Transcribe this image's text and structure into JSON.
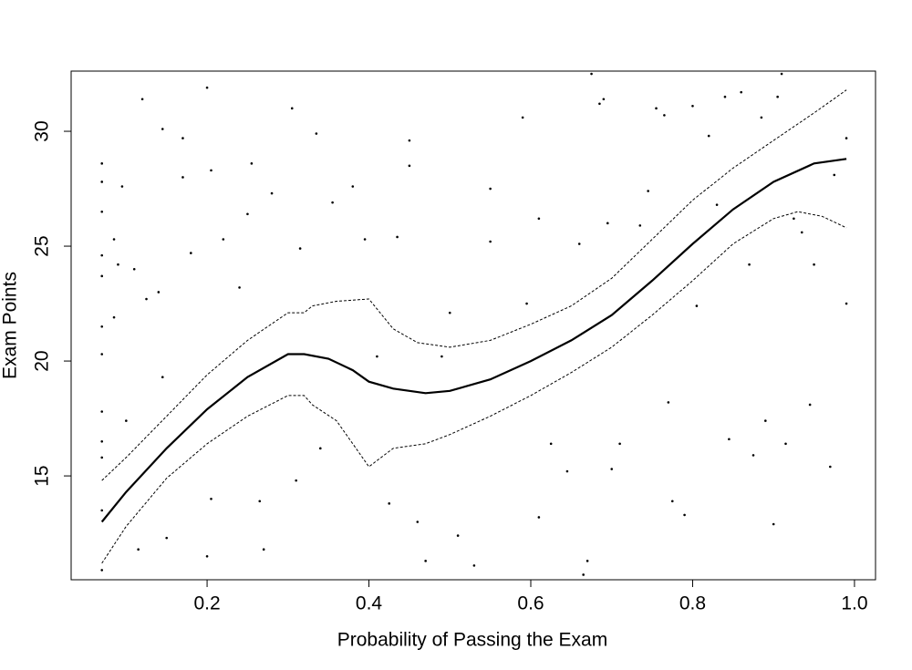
{
  "chart_data": {
    "type": "scatter",
    "xlabel": "Probability of Passing the Exam",
    "ylabel": "Exam Points",
    "color": "#000000",
    "xlim": [
      0.032,
      1.026
    ],
    "ylim": [
      10.48,
      32.62
    ],
    "xticks": [
      0.2,
      0.4,
      0.6,
      0.8,
      {
        "value": 1,
        "label": "1.0"
      }
    ],
    "yticks": [
      15,
      20,
      25,
      30
    ],
    "x": [
      0.07,
      0.07,
      0.07,
      0.07,
      0.07,
      0.07,
      0.07,
      0.07,
      0.07,
      0.07,
      0.07,
      0.07,
      0.085,
      0.085,
      0.09,
      0.095,
      0.1,
      0.11,
      0.115,
      0.12,
      0.125,
      0.14,
      0.145,
      0.145,
      0.15,
      0.17,
      0.17,
      0.18,
      0.2,
      0.205,
      0.2,
      0.205,
      0.22,
      0.24,
      0.25,
      0.255,
      0.265,
      0.27,
      0.28,
      0.305,
      0.31,
      0.315,
      0.335,
      0.34,
      0.355,
      0.38,
      0.395,
      0.41,
      0.425,
      0.435,
      0.45,
      0.45,
      0.46,
      0.47,
      0.49,
      0.5,
      0.51,
      0.53,
      0.55,
      0.55,
      0.59,
      0.595,
      0.61,
      0.61,
      0.625,
      0.645,
      0.66,
      0.665,
      0.67,
      0.675,
      0.685,
      0.69,
      0.695,
      0.7,
      0.71,
      0.735,
      0.745,
      0.755,
      0.765,
      0.77,
      0.775,
      0.79,
      0.8,
      0.805,
      0.82,
      0.83,
      0.84,
      0.845,
      0.86,
      0.87,
      0.875,
      0.885,
      0.89,
      0.9,
      0.905,
      0.91,
      0.915,
      0.925,
      0.935,
      0.945,
      0.95,
      0.97,
      0.975,
      0.99,
      0.99
    ],
    "values": [
      28.6,
      27.8,
      26.5,
      24.6,
      23.7,
      21.5,
      20.3,
      17.8,
      16.5,
      15.8,
      13.5,
      10.9,
      25.3,
      21.9,
      24.2,
      27.6,
      17.4,
      24.0,
      11.8,
      31.4,
      22.7,
      23.0,
      30.1,
      19.3,
      12.3,
      29.7,
      28.0,
      24.7,
      31.9,
      28.3,
      11.5,
      14.0,
      25.3,
      23.2,
      26.4,
      28.6,
      13.9,
      11.8,
      27.3,
      31.0,
      14.8,
      24.9,
      29.9,
      16.2,
      26.9,
      27.6,
      25.3,
      20.2,
      13.8,
      25.4,
      29.6,
      28.5,
      13.0,
      11.3,
      20.2,
      22.1,
      12.4,
      11.1,
      27.5,
      25.2,
      30.6,
      22.5,
      26.2,
      13.2,
      16.4,
      15.2,
      25.1,
      10.7,
      11.3,
      32.5,
      31.2,
      31.4,
      26.0,
      15.3,
      16.4,
      25.9,
      27.4,
      31.0,
      30.7,
      18.2,
      13.9,
      13.3,
      31.1,
      22.4,
      29.8,
      26.8,
      31.5,
      16.6,
      31.7,
      24.2,
      15.9,
      30.6,
      17.4,
      12.9,
      31.5,
      32.5,
      16.4,
      26.2,
      25.6,
      18.1,
      24.2,
      15.4,
      28.1,
      29.7,
      22.5
    ],
    "lines": [
      {
        "dashed": false,
        "x": [
          0.07,
          0.1,
          0.15,
          0.2,
          0.25,
          0.3,
          0.32,
          0.35,
          0.38,
          0.4,
          0.43,
          0.47,
          0.5,
          0.55,
          0.6,
          0.65,
          0.7,
          0.75,
          0.8,
          0.85,
          0.9,
          0.95,
          0.99
        ],
        "values": [
          13.0,
          14.3,
          16.2,
          17.9,
          19.3,
          20.3,
          20.3,
          20.1,
          19.6,
          19.1,
          18.8,
          18.6,
          18.7,
          19.2,
          20.0,
          20.9,
          22.0,
          23.5,
          25.1,
          26.6,
          27.8,
          28.6,
          28.8
        ]
      },
      {
        "dashed": true,
        "x": [
          0.07,
          0.1,
          0.15,
          0.2,
          0.25,
          0.3,
          0.32,
          0.33,
          0.36,
          0.4,
          0.43,
          0.46,
          0.5,
          0.55,
          0.6,
          0.65,
          0.7,
          0.75,
          0.8,
          0.85,
          0.9,
          0.95,
          0.99
        ],
        "values": [
          14.8,
          15.8,
          17.6,
          19.4,
          20.9,
          22.1,
          22.1,
          22.4,
          22.6,
          22.7,
          21.4,
          20.8,
          20.6,
          20.9,
          21.6,
          22.4,
          23.6,
          25.3,
          27.0,
          28.4,
          29.6,
          30.8,
          31.8
        ]
      },
      {
        "dashed": true,
        "x": [
          0.07,
          0.1,
          0.15,
          0.2,
          0.25,
          0.3,
          0.32,
          0.33,
          0.36,
          0.38,
          0.4,
          0.43,
          0.47,
          0.5,
          0.55,
          0.6,
          0.65,
          0.7,
          0.75,
          0.8,
          0.85,
          0.9,
          0.93,
          0.96,
          0.99
        ],
        "values": [
          11.2,
          12.8,
          14.9,
          16.4,
          17.6,
          18.5,
          18.5,
          18.1,
          17.4,
          16.4,
          15.4,
          16.2,
          16.4,
          16.8,
          17.6,
          18.5,
          19.5,
          20.6,
          22.0,
          23.5,
          25.1,
          26.2,
          26.5,
          26.3,
          25.8
        ]
      }
    ]
  }
}
